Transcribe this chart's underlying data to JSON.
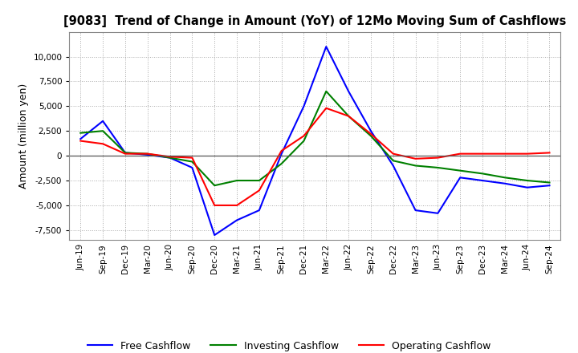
{
  "title": "[9083]  Trend of Change in Amount (YoY) of 12Mo Moving Sum of Cashflows",
  "ylabel": "Amount (million yen)",
  "x_labels": [
    "Jun-19",
    "Sep-19",
    "Dec-19",
    "Mar-20",
    "Jun-20",
    "Sep-20",
    "Dec-20",
    "Mar-21",
    "Jun-21",
    "Sep-21",
    "Dec-21",
    "Mar-22",
    "Jun-22",
    "Sep-22",
    "Dec-22",
    "Mar-23",
    "Jun-23",
    "Sep-23",
    "Dec-23",
    "Mar-24",
    "Jun-24",
    "Sep-24"
  ],
  "operating": [
    1500,
    1200,
    200,
    200,
    -100,
    -200,
    -5000,
    -5000,
    -3500,
    500,
    2000,
    4800,
    4000,
    2200,
    200,
    -300,
    -200,
    200,
    200,
    200,
    200,
    300
  ],
  "investing": [
    2300,
    2500,
    300,
    200,
    -200,
    -600,
    -3000,
    -2500,
    -2500,
    -800,
    1500,
    6500,
    4000,
    2000,
    -500,
    -1000,
    -1200,
    -1500,
    -1800,
    -2200,
    -2500,
    -2700
  ],
  "free": [
    1700,
    3500,
    300,
    100,
    -200,
    -1200,
    -8000,
    -6500,
    -5500,
    200,
    5000,
    11000,
    6500,
    2500,
    -1000,
    -5500,
    -5800,
    -2200,
    -2500,
    -2800,
    -3200,
    -3000
  ],
  "colors": {
    "operating": "#ff0000",
    "investing": "#008000",
    "free": "#0000ff"
  },
  "ylim": [
    -8500,
    12500
  ],
  "yticks": [
    -7500,
    -5000,
    -2500,
    0,
    2500,
    5000,
    7500,
    10000
  ],
  "legend_labels": [
    "Operating Cashflow",
    "Investing Cashflow",
    "Free Cashflow"
  ],
  "background_color": "#ffffff",
  "grid_color": "#aaaaaa"
}
